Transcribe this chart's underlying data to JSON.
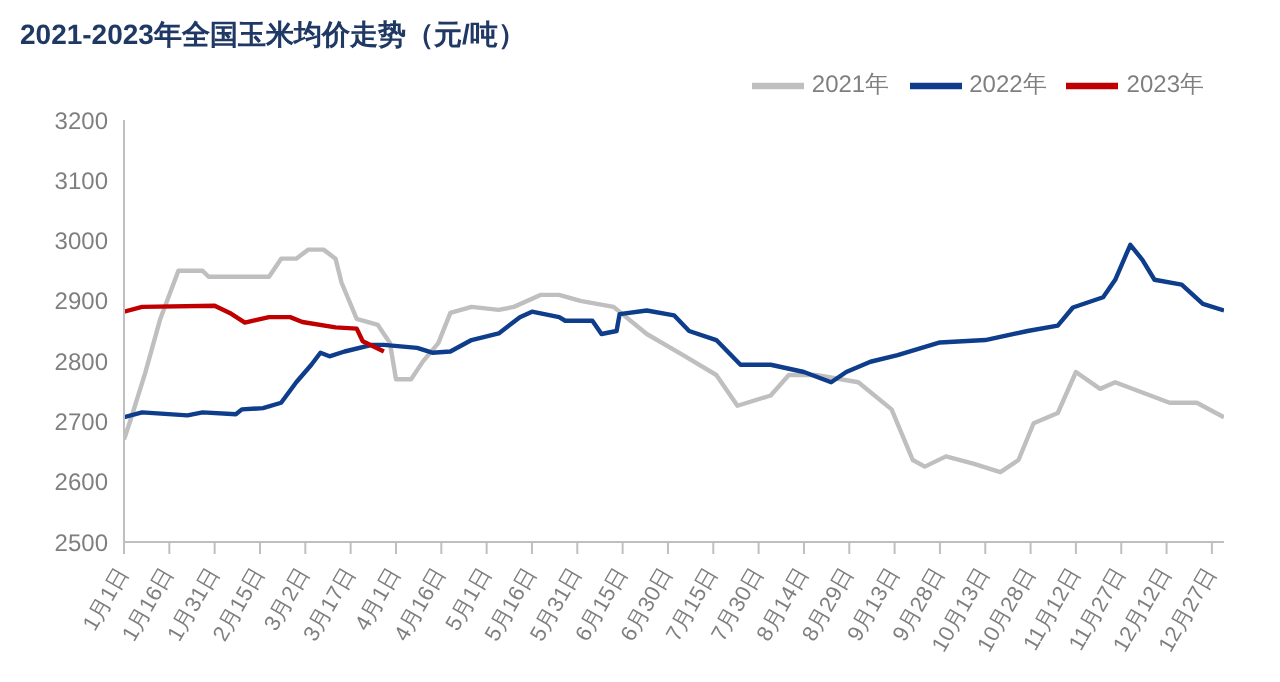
{
  "chart_data": {
    "type": "line",
    "title": "2021-2023年全国玉米均价走势（元/吨）",
    "legend": "top right",
    "grid": false,
    "marker": "none",
    "line_style": "solid",
    "xlim": [
      "--01-01",
      "--12-31"
    ],
    "xticks": [
      {
        "value": "--01-01",
        "label": "1月1日"
      },
      {
        "value": "--01-16",
        "label": "1月16日"
      },
      {
        "value": "--01-31",
        "label": "1月31日"
      },
      {
        "value": "--02-15",
        "label": "2月15日"
      },
      {
        "value": "--03-02",
        "label": "3月2日"
      },
      {
        "value": "--03-17",
        "label": "3月17日"
      },
      {
        "value": "--04-01",
        "label": "4月1日"
      },
      {
        "value": "--04-16",
        "label": "4月16日"
      },
      {
        "value": "--05-01",
        "label": "5月1日"
      },
      {
        "value": "--05-16",
        "label": "5月16日"
      },
      {
        "value": "--05-31",
        "label": "5月31日"
      },
      {
        "value": "--06-15",
        "label": "6月15日"
      },
      {
        "value": "--06-30",
        "label": "6月30日"
      },
      {
        "value": "--07-15",
        "label": "7月15日"
      },
      {
        "value": "--07-30",
        "label": "7月30日"
      },
      {
        "value": "--08-14",
        "label": "8月14日"
      },
      {
        "value": "--08-29",
        "label": "8月29日"
      },
      {
        "value": "--09-13",
        "label": "9月13日"
      },
      {
        "value": "--09-28",
        "label": "9月28日"
      },
      {
        "value": "--10-13",
        "label": "10月13日"
      },
      {
        "value": "--10-28",
        "label": "10月28日"
      },
      {
        "value": "--11-12",
        "label": "11月12日"
      },
      {
        "value": "--11-27",
        "label": "11月27日"
      },
      {
        "value": "--12-12",
        "label": "12月12日"
      },
      {
        "value": "--12-27",
        "label": "12月27日"
      }
    ],
    "ylim": [
      2500,
      3200
    ],
    "yticks": [
      2500,
      2600,
      2700,
      2800,
      2900,
      3000,
      3100,
      3200
    ],
    "series": [
      {
        "name": "2021年",
        "color": "#bfbfbf",
        "x": [
          "--01-01",
          "--01-03",
          "--01-08",
          "--01-13",
          "--01-19",
          "--01-27",
          "--01-29",
          "--02-18",
          "--02-22",
          "--02-27",
          "--03-03",
          "--03-08",
          "--03-12",
          "--03-14",
          "--03-19",
          "--03-26",
          "--03-30",
          "--04-01",
          "--04-06",
          "--04-10",
          "--04-15",
          "--04-19",
          "--04-26",
          "--05-05",
          "--05-10",
          "--05-19",
          "--05-25",
          "--06-01",
          "--06-12",
          "--06-23",
          "--07-05",
          "--07-16",
          "--07-23",
          "--08-03",
          "--08-09",
          "--08-18",
          "--09-01",
          "--09-12",
          "--09-19",
          "--09-23",
          "--09-30",
          "--10-09",
          "--10-18",
          "--10-24",
          "--10-29",
          "--11-06",
          "--11-12",
          "--11-20",
          "--11-25",
          "--12-04",
          "--12-13",
          "--12-22",
          "--12-31"
        ],
        "values": [
          2670,
          2700,
          2780,
          2870,
          2950,
          2950,
          2940,
          2940,
          2970,
          2970,
          2985,
          2985,
          2970,
          2930,
          2870,
          2860,
          2830,
          2770,
          2770,
          2800,
          2830,
          2880,
          2890,
          2885,
          2890,
          2910,
          2910,
          2900,
          2890,
          2845,
          2810,
          2777,
          2726,
          2743,
          2777,
          2777,
          2765,
          2720,
          2636,
          2625,
          2642,
          2630,
          2616,
          2636,
          2697,
          2714,
          2782,
          2754,
          2765,
          2748,
          2731,
          2731,
          2707
        ]
      },
      {
        "name": "2022年",
        "color": "#0e3d8c",
        "x": [
          "--01-01",
          "--01-07",
          "--01-22",
          "--01-27",
          "--02-07",
          "--02-09",
          "--02-16",
          "--02-22",
          "--02-27",
          "--03-04",
          "--03-07",
          "--03-10",
          "--03-15",
          "--03-24",
          "--03-28",
          "--04-08",
          "--04-13",
          "--04-19",
          "--04-26",
          "--05-05",
          "--05-12",
          "--05-16",
          "--05-25",
          "--05-27",
          "--06-05",
          "--06-08",
          "--06-13",
          "--06-14",
          "--06-23",
          "--07-02",
          "--07-07",
          "--07-16",
          "--07-24",
          "--08-03",
          "--08-14",
          "--08-23",
          "--08-28",
          "--09-05",
          "--09-14",
          "--09-28",
          "--10-13",
          "--10-27",
          "--11-06",
          "--11-11",
          "--11-21",
          "--11-25",
          "--11-30",
          "--12-04",
          "--12-08",
          "--12-17",
          "--12-24",
          "--12-31"
        ],
        "values": [
          2707,
          2715,
          2710,
          2715,
          2712,
          2720,
          2722,
          2731,
          2765,
          2794,
          2814,
          2808,
          2816,
          2827,
          2827,
          2822,
          2814,
          2816,
          2835,
          2846,
          2873,
          2882,
          2873,
          2867,
          2867,
          2845,
          2850,
          2878,
          2884,
          2876,
          2850,
          2835,
          2794,
          2794,
          2782,
          2765,
          2782,
          2799,
          2810,
          2831,
          2835,
          2850,
          2859,
          2889,
          2906,
          2935,
          2993,
          2968,
          2935,
          2927,
          2895,
          2884
        ]
      },
      {
        "name": "2023年",
        "color": "#c00000",
        "x": [
          "--01-01",
          "--01-07",
          "--01-31",
          "--02-05",
          "--02-10",
          "--02-18",
          "--02-25",
          "--03-01",
          "--03-12",
          "--03-19",
          "--03-21",
          "--03-28"
        ],
        "values": [
          2882,
          2890,
          2892,
          2880,
          2864,
          2873,
          2873,
          2865,
          2856,
          2854,
          2833,
          2816
        ]
      }
    ]
  }
}
